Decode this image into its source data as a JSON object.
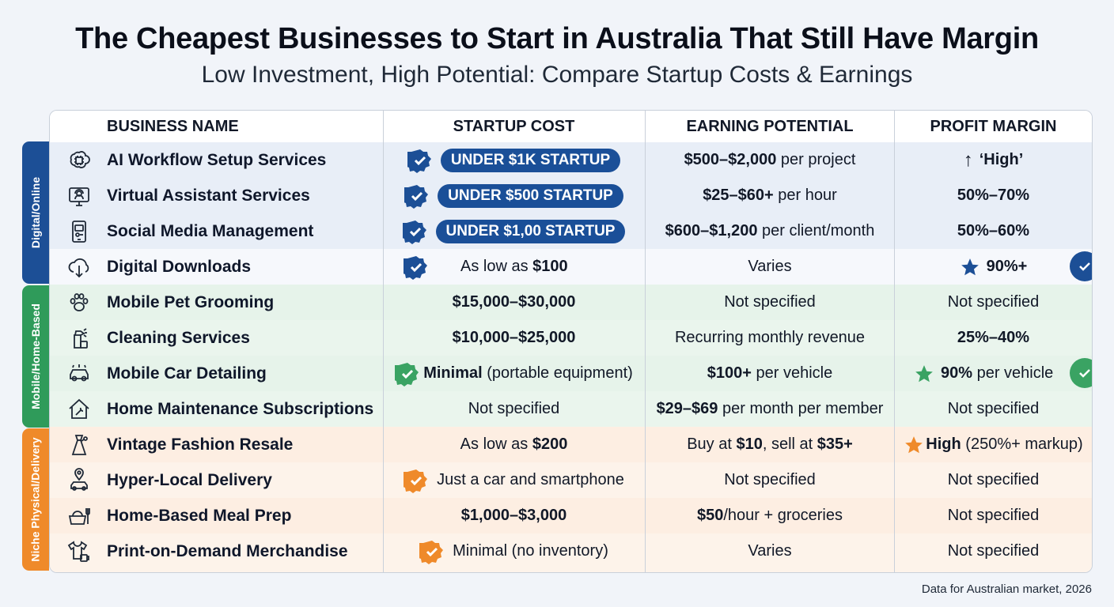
{
  "title": "The Cheapest Businesses to Start in Australia That Still Have Margin",
  "subtitle": "Low Investment, High Potential: Compare Startup Costs & Earnings",
  "headers": {
    "business": "BUSINESS NAME",
    "cost": "STARTUP COST",
    "earning": "EARNING POTENTIAL",
    "margin": "PROFIT MARGIN"
  },
  "groups": [
    {
      "label": "Digital/Online",
      "color": "#1c4f96"
    },
    {
      "label": "Mobile/Home-Based",
      "color": "#2f9b5a"
    },
    {
      "label": "Niche Physical/Delivery",
      "color": "#ef8a2a"
    }
  ],
  "rows": [
    {
      "icon": "brain-chip-icon",
      "name": "AI Workflow Setup Services",
      "cost_pill": "UNDER $1K STARTUP",
      "earn_b": "$500–$2,000",
      "earn_r": " per project",
      "margin_arrow": "↑",
      "margin": "‘High’"
    },
    {
      "icon": "headset-monitor-icon",
      "name": "Virtual Assistant Services",
      "cost_pill": "UNDER $500 STARTUP",
      "earn_b": "$25–$60+",
      "earn_r": " per hour",
      "margin": "50%–70%"
    },
    {
      "icon": "phone-social-icon",
      "name": "Social Media Management",
      "cost_pill": "UNDER $1,00 STARTUP",
      "earn_b": "$600–$1,200",
      "earn_r": " per client/month",
      "margin": "50%–60%"
    },
    {
      "icon": "cloud-download-icon",
      "name": "Digital Downloads",
      "cost_r": "As low as ",
      "cost_b": "$100",
      "earn": "Varies",
      "margin": "90%+"
    },
    {
      "icon": "paw-icon",
      "name": "Mobile Pet Grooming",
      "cost_b": "$15,000–$30,000",
      "earn": "Not specified",
      "margin": "Not specified"
    },
    {
      "icon": "spray-bottle-icon",
      "name": "Cleaning Services",
      "cost_b": "$10,000–$25,000",
      "earn": "Recurring monthly revenue",
      "margin": "25%–40%"
    },
    {
      "icon": "car-wash-icon",
      "name": "Mobile Car Detailing",
      "cost_b": "Minimal",
      "cost_r": " (portable equipment)",
      "earn_b": "$100+",
      "earn_r": " per vehicle",
      "margin_b": "90%",
      "margin_r": " per vehicle"
    },
    {
      "icon": "house-wrench-icon",
      "name": "Home Maintenance Subscriptions",
      "cost": "Not specified",
      "earn_b": "$29–$69",
      "earn_r": " per month per member",
      "margin": "Not specified"
    },
    {
      "icon": "dress-tag-icon",
      "name": "Vintage Fashion Resale",
      "cost_r": "As low as ",
      "cost_b": "$200",
      "earn_a": "Buy at ",
      "earn_b1": "$10",
      "earn_m": ", sell at ",
      "earn_b2": "$35+",
      "margin_b": "High",
      "margin_r": " (250%+ markup)"
    },
    {
      "icon": "location-car-icon",
      "name": "Hyper-Local Delivery",
      "cost": "Just a car and smartphone",
      "earn": "Not specified",
      "margin": "Not specified"
    },
    {
      "icon": "meal-basket-icon",
      "name": "Home-Based Meal Prep",
      "cost_b": "$1,000–$3,000",
      "earn_b": "$50",
      "earn_r": "/hour + groceries",
      "margin": "Not specified"
    },
    {
      "icon": "tshirt-mug-icon",
      "name": "Print-on-Demand Merchandise",
      "cost": "Minimal (no inventory)",
      "earn": "Varies",
      "margin": "Not specified"
    }
  ],
  "footnote": "Data for Australian market, 2026"
}
